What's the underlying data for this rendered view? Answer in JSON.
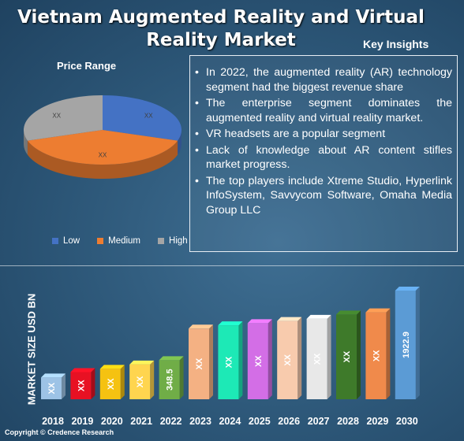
{
  "title": "Vietnam Augmented Reality and Virtual Reality Market",
  "key_insights_label": "Key Insights",
  "insights": [
    "In 2022, the augmented reality (AR) technology segment had the biggest revenue share",
    "The enterprise segment dominates the augmented reality and virtual reality market.",
    "VR headsets are a popular segment",
    "Lack of knowledge about AR content stifles market progress.",
    "The top players include Xtreme Studio, Hyperlink InfoSystem, Savvycom Software, Omaha Media Group LLC"
  ],
  "copyright": "Copyright © Credence Research",
  "chart_data": [
    {
      "type": "pie",
      "title": "Price Range",
      "labels": [
        "Low",
        "Medium",
        "High"
      ],
      "values": [
        30,
        40,
        30
      ],
      "data_labels": [
        "XX",
        "XX",
        "XX"
      ],
      "colors": [
        "#4472c4",
        "#ed7d31",
        "#a5a5a5"
      ],
      "legend_position": "bottom"
    },
    {
      "type": "bar",
      "categories": [
        "2018",
        "2019",
        "2020",
        "2021",
        "2022",
        "2023",
        "2024",
        "2025",
        "2026",
        "2027",
        "2028",
        "2029",
        "2030"
      ],
      "values": [
        null,
        null,
        null,
        null,
        348.5,
        null,
        null,
        null,
        null,
        null,
        null,
        null,
        1922.9
      ],
      "data_labels": [
        "XX",
        "XX",
        "XX",
        "XX",
        "348.5",
        "XX",
        "XX",
        "XX",
        "XX",
        "XX",
        "XX",
        "XX",
        "1922.9"
      ],
      "ylabel": "MARKET SIZE USD BN",
      "colors": [
        "#9dc3e6",
        "#e81123",
        "#f5c211",
        "#ffd54f",
        "#70ad47",
        "#f4b183",
        "#1de9b6",
        "#d36ee6",
        "#f8cbad",
        "#e8e8e8",
        "#3e7a2a",
        "#f08a4b",
        "#5b9bd5"
      ]
    }
  ]
}
